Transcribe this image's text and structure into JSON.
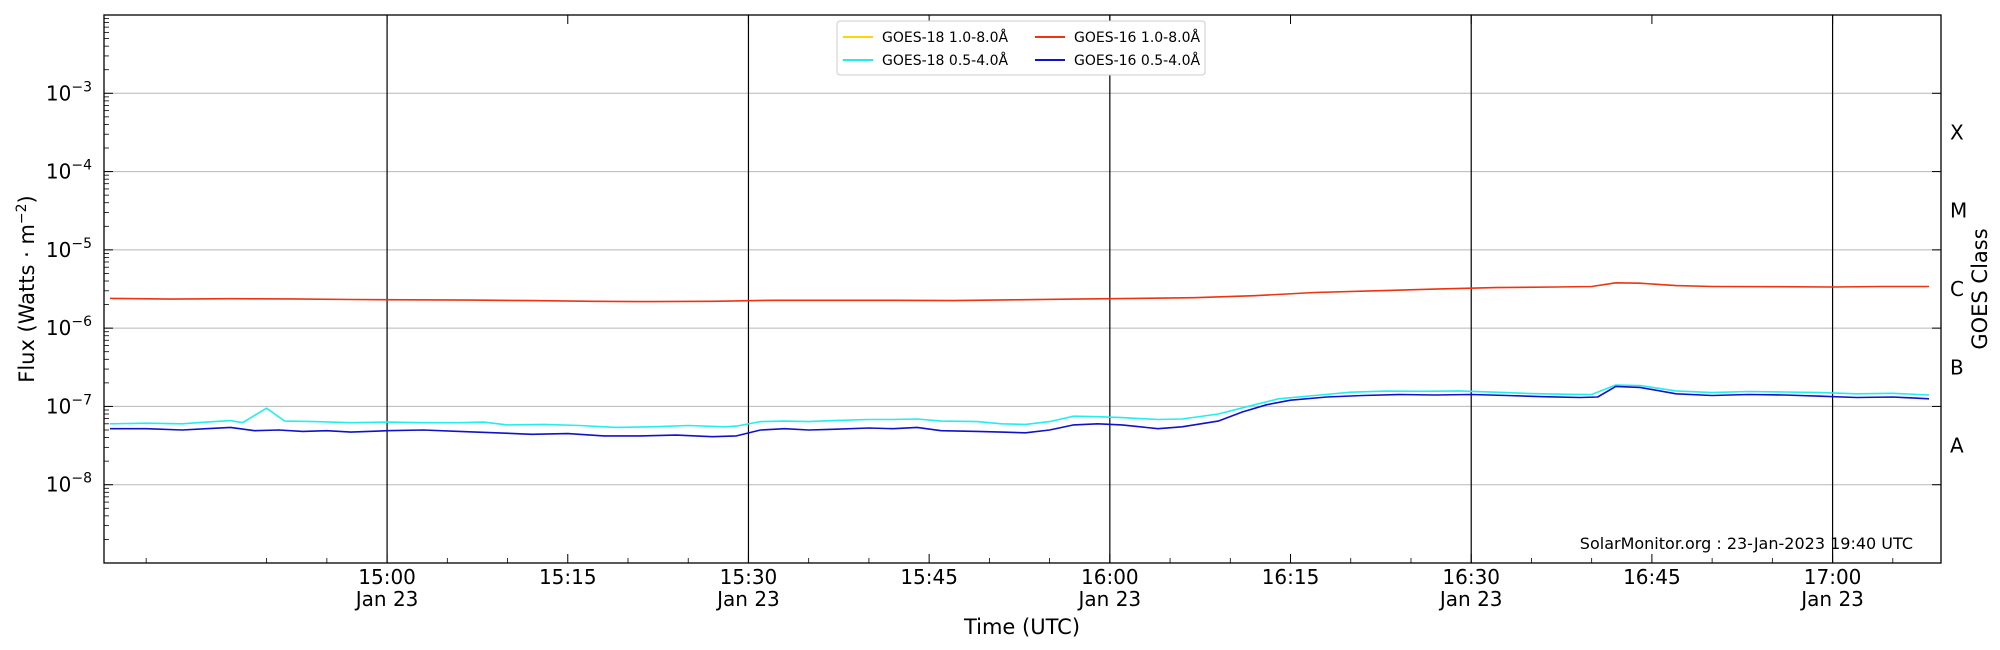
{
  "chart_data": {
    "type": "line",
    "xlabel": "Time (UTC)",
    "ylabel_main": "Flux (Watts · m",
    "ylabel_sup": "−2",
    "ylabel_close": ")",
    "ylabel_right": "GOES Class",
    "y_scale": "log",
    "ylim_exponent": [
      -9,
      -2
    ],
    "x_range_minutes": [
      -23.5,
      129
    ],
    "x_ticks": [
      {
        "t": 0,
        "time": "15:00",
        "date": "Jan 23"
      },
      {
        "t": 15,
        "time": "15:15",
        "date": ""
      },
      {
        "t": 30,
        "time": "15:30",
        "date": "Jan 23"
      },
      {
        "t": 45,
        "time": "15:45",
        "date": ""
      },
      {
        "t": 60,
        "time": "16:00",
        "date": "Jan 23"
      },
      {
        "t": 75,
        "time": "16:15",
        "date": ""
      },
      {
        "t": 90,
        "time": "16:30",
        "date": "Jan 23"
      },
      {
        "t": 105,
        "time": "16:45",
        "date": ""
      },
      {
        "t": 120,
        "time": "17:00",
        "date": "Jan 23"
      }
    ],
    "y_ticks": [
      {
        "base": "10",
        "exp": "−8",
        "e": -8
      },
      {
        "base": "10",
        "exp": "−7",
        "e": -7
      },
      {
        "base": "10",
        "exp": "−6",
        "e": -6
      },
      {
        "base": "10",
        "exp": "−5",
        "e": -5
      },
      {
        "base": "10",
        "exp": "−4",
        "e": -4
      },
      {
        "base": "10",
        "exp": "−3",
        "e": -3
      }
    ],
    "goes_classes": [
      {
        "label": "A",
        "e": -7.5
      },
      {
        "label": "B",
        "e": -6.5
      },
      {
        "label": "C",
        "e": -5.5
      },
      {
        "label": "M",
        "e": -4.5
      },
      {
        "label": "X",
        "e": -3.5
      }
    ],
    "gridlines": "horizontal at decades; vertical black lines at 30-minute marks",
    "legend_position": "upper center",
    "watermark": "SolarMonitor.org : 23-Jan-2023 19:40 UTC",
    "series": [
      {
        "name": "GOES-18 1.0-8.0Å",
        "color": "#FFD700",
        "points": []
      },
      {
        "name": "GOES-18 0.5-4.0Å",
        "color": "#22EEEE",
        "points": [
          [
            -23,
            6e-08
          ],
          [
            -20,
            6.1e-08
          ],
          [
            -17,
            6e-08
          ],
          [
            -15,
            6.3e-08
          ],
          [
            -13,
            6.6e-08
          ],
          [
            -12,
            6.2e-08
          ],
          [
            -10,
            9.5e-08
          ],
          [
            -8.5,
            6.5e-08
          ],
          [
            -6,
            6.4e-08
          ],
          [
            -3,
            6.2e-08
          ],
          [
            0,
            6.3e-08
          ],
          [
            3,
            6.2e-08
          ],
          [
            6,
            6.2e-08
          ],
          [
            8,
            6.3e-08
          ],
          [
            10,
            5.8e-08
          ],
          [
            13,
            5.9e-08
          ],
          [
            16,
            5.7e-08
          ],
          [
            19,
            5.4e-08
          ],
          [
            22,
            5.5e-08
          ],
          [
            25,
            5.7e-08
          ],
          [
            28,
            5.5e-08
          ],
          [
            29,
            5.6e-08
          ],
          [
            31,
            6.4e-08
          ],
          [
            33,
            6.5e-08
          ],
          [
            35,
            6.4e-08
          ],
          [
            37,
            6.6e-08
          ],
          [
            40,
            6.8e-08
          ],
          [
            42,
            6.8e-08
          ],
          [
            44,
            6.9e-08
          ],
          [
            46,
            6.5e-08
          ],
          [
            49,
            6.4e-08
          ],
          [
            51,
            6e-08
          ],
          [
            53,
            5.9e-08
          ],
          [
            55,
            6.4e-08
          ],
          [
            57,
            7.5e-08
          ],
          [
            59,
            7.4e-08
          ],
          [
            61,
            7.2e-08
          ],
          [
            64,
            6.8e-08
          ],
          [
            66,
            6.9e-08
          ],
          [
            69,
            8e-08
          ],
          [
            72,
            1.05e-07
          ],
          [
            74,
            1.25e-07
          ],
          [
            77,
            1.38e-07
          ],
          [
            80,
            1.52e-07
          ],
          [
            83,
            1.57e-07
          ],
          [
            86,
            1.56e-07
          ],
          [
            89,
            1.58e-07
          ],
          [
            92,
            1.52e-07
          ],
          [
            95,
            1.46e-07
          ],
          [
            98,
            1.43e-07
          ],
          [
            100,
            1.42e-07
          ],
          [
            102,
            1.88e-07
          ],
          [
            104,
            1.85e-07
          ],
          [
            107,
            1.58e-07
          ],
          [
            110,
            1.5e-07
          ],
          [
            113,
            1.55e-07
          ],
          [
            116,
            1.53e-07
          ],
          [
            119,
            1.5e-07
          ],
          [
            122,
            1.45e-07
          ],
          [
            125,
            1.47e-07
          ],
          [
            128,
            1.4e-07
          ]
        ]
      },
      {
        "name": "GOES-16 1.0-8.0Å",
        "color": "#EE3311",
        "points": [
          [
            -23,
            2.4e-06
          ],
          [
            -18,
            2.35e-06
          ],
          [
            -13,
            2.38e-06
          ],
          [
            -8,
            2.36e-06
          ],
          [
            -3,
            2.32e-06
          ],
          [
            2,
            2.3e-06
          ],
          [
            7,
            2.28e-06
          ],
          [
            12,
            2.25e-06
          ],
          [
            17,
            2.2e-06
          ],
          [
            22,
            2.18e-06
          ],
          [
            27,
            2.2e-06
          ],
          [
            32,
            2.27e-06
          ],
          [
            37,
            2.27e-06
          ],
          [
            42,
            2.27e-06
          ],
          [
            47,
            2.25e-06
          ],
          [
            52,
            2.3e-06
          ],
          [
            57,
            2.35e-06
          ],
          [
            62,
            2.4e-06
          ],
          [
            67,
            2.45e-06
          ],
          [
            72,
            2.6e-06
          ],
          [
            77,
            2.85e-06
          ],
          [
            82,
            3e-06
          ],
          [
            87,
            3.15e-06
          ],
          [
            92,
            3.3e-06
          ],
          [
            97,
            3.35e-06
          ],
          [
            100,
            3.4e-06
          ],
          [
            102,
            3.8e-06
          ],
          [
            104,
            3.75e-06
          ],
          [
            107,
            3.5e-06
          ],
          [
            110,
            3.4e-06
          ],
          [
            115,
            3.38e-06
          ],
          [
            120,
            3.35e-06
          ],
          [
            124,
            3.4e-06
          ],
          [
            128,
            3.4e-06
          ]
        ]
      },
      {
        "name": "GOES-16 0.5-4.0Å",
        "color": "#1111CC",
        "points": [
          [
            -23,
            5.2e-08
          ],
          [
            -20,
            5.2e-08
          ],
          [
            -17,
            5e-08
          ],
          [
            -15,
            5.2e-08
          ],
          [
            -13,
            5.4e-08
          ],
          [
            -11,
            4.9e-08
          ],
          [
            -9,
            5e-08
          ],
          [
            -7,
            4.8e-08
          ],
          [
            -5,
            4.9e-08
          ],
          [
            -3,
            4.7e-08
          ],
          [
            0,
            4.9e-08
          ],
          [
            3,
            5e-08
          ],
          [
            6,
            4.8e-08
          ],
          [
            9,
            4.6e-08
          ],
          [
            12,
            4.4e-08
          ],
          [
            15,
            4.5e-08
          ],
          [
            18,
            4.2e-08
          ],
          [
            21,
            4.2e-08
          ],
          [
            24,
            4.3e-08
          ],
          [
            27,
            4.1e-08
          ],
          [
            29,
            4.2e-08
          ],
          [
            31,
            5e-08
          ],
          [
            33,
            5.2e-08
          ],
          [
            35,
            5e-08
          ],
          [
            37,
            5.1e-08
          ],
          [
            40,
            5.3e-08
          ],
          [
            42,
            5.2e-08
          ],
          [
            44,
            5.4e-08
          ],
          [
            46,
            4.9e-08
          ],
          [
            49,
            4.8e-08
          ],
          [
            51,
            4.7e-08
          ],
          [
            53,
            4.6e-08
          ],
          [
            55,
            5e-08
          ],
          [
            57,
            5.8e-08
          ],
          [
            59,
            6e-08
          ],
          [
            61,
            5.8e-08
          ],
          [
            64,
            5.2e-08
          ],
          [
            66,
            5.5e-08
          ],
          [
            69,
            6.5e-08
          ],
          [
            71,
            8.5e-08
          ],
          [
            73,
            1.05e-07
          ],
          [
            75,
            1.2e-07
          ],
          [
            78,
            1.32e-07
          ],
          [
            81,
            1.38e-07
          ],
          [
            84,
            1.42e-07
          ],
          [
            87,
            1.4e-07
          ],
          [
            90,
            1.42e-07
          ],
          [
            93,
            1.38e-07
          ],
          [
            96,
            1.33e-07
          ],
          [
            99,
            1.3e-07
          ],
          [
            100.5,
            1.32e-07
          ],
          [
            102,
            1.8e-07
          ],
          [
            104,
            1.75e-07
          ],
          [
            107,
            1.45e-07
          ],
          [
            110,
            1.38e-07
          ],
          [
            113,
            1.42e-07
          ],
          [
            116,
            1.4e-07
          ],
          [
            119,
            1.35e-07
          ],
          [
            122,
            1.3e-07
          ],
          [
            125,
            1.32e-07
          ],
          [
            128,
            1.25e-07
          ]
        ]
      }
    ]
  }
}
